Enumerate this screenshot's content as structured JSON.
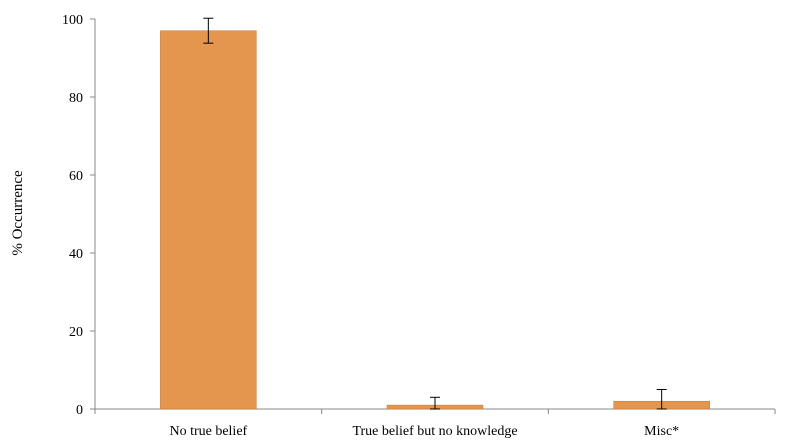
{
  "chart_data": {
    "type": "bar",
    "title": "",
    "xlabel": "",
    "ylabel": "% Occurrence",
    "categories": [
      "No true belief",
      "True belief but no knowledge",
      "Misc*"
    ],
    "values": [
      97,
      1,
      2
    ],
    "errors": [
      3.2,
      2.0,
      3.0
    ],
    "ylim": [
      0,
      100
    ],
    "yticks": [
      0,
      20,
      40,
      60,
      80,
      100
    ],
    "grid": false,
    "legend": "none",
    "bar_color": "#E4954E",
    "bar_edge_color": "#C07A38",
    "axis_color": "#888888"
  }
}
